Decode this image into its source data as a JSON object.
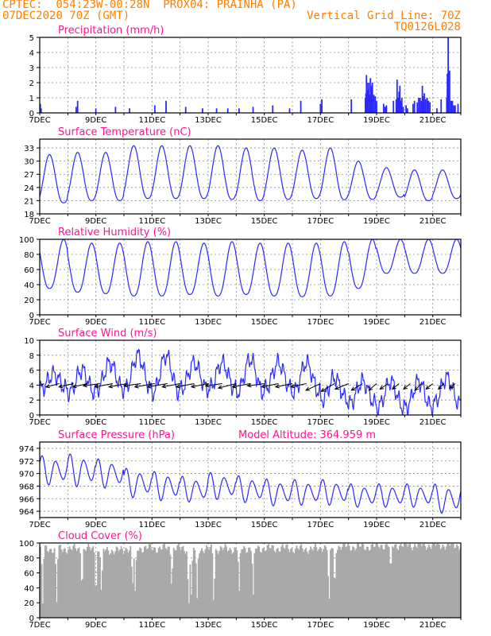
{
  "header": {
    "line1": "CPTEC:  054:23W-00:28N  PROX04: PRAINHA (PA)",
    "line2": "07DEC2020 70Z (GMT)",
    "right1": "Vertical Grid Line: 70Z",
    "right2": "TQ0126L028"
  },
  "colors": {
    "header": "#ff7f00",
    "title": "#ff1493",
    "series": "#2a2aff",
    "cloud": "#a9a9a9"
  },
  "x_tick_labels": [
    "7DEC",
    "9DEC",
    "11DEC",
    "13DEC",
    "15DEC",
    "17DEC",
    "19DEC",
    "21DEC"
  ],
  "x_tick_days": [
    0,
    2,
    4,
    6,
    8,
    10,
    12,
    14
  ],
  "x_range_days": [
    0,
    15
  ],
  "panels": [
    {
      "id": "precipitation",
      "title": "Precipitation (mm/h)",
      "title_extra": "",
      "y_ticks": [
        0,
        1,
        2,
        3,
        4,
        5
      ],
      "chart_data": {
        "type": "bar",
        "xlabel_units": "days since 07DEC2020",
        "ylim": [
          0,
          5
        ],
        "x": [
          0.02,
          0.05,
          1.3,
          1.35,
          2.0,
          2.7,
          3.2,
          4.1,
          4.5,
          5.2,
          5.8,
          6.3,
          6.7,
          7.1,
          7.6,
          8.3,
          8.9,
          9.3,
          10.0,
          10.05,
          11.1,
          11.6,
          11.62,
          11.64,
          11.66,
          11.7,
          11.72,
          11.75,
          11.78,
          11.8,
          11.82,
          11.85,
          11.9,
          11.95,
          12.0,
          12.25,
          12.3,
          12.35,
          12.6,
          12.7,
          12.73,
          12.76,
          12.8,
          12.83,
          12.87,
          12.9,
          12.95,
          13.05,
          13.1,
          13.3,
          13.35,
          13.45,
          13.5,
          13.55,
          13.6,
          13.63,
          13.65,
          13.67,
          13.7,
          13.75,
          13.8,
          13.85,
          13.9,
          14.15,
          14.3,
          14.5,
          14.52,
          14.55,
          14.58,
          14.6,
          14.65,
          14.7,
          14.75,
          14.8,
          14.9
        ],
        "values": [
          0.6,
          0.3,
          0.4,
          0.8,
          0.3,
          0.4,
          0.3,
          0.5,
          0.8,
          0.4,
          0.3,
          0.3,
          0.3,
          0.3,
          0.4,
          0.5,
          0.3,
          0.8,
          0.6,
          0.9,
          0.9,
          1.0,
          1.3,
          2.5,
          2.0,
          1.5,
          2.0,
          1.2,
          2.3,
          1.8,
          1.6,
          2.0,
          1.2,
          1.1,
          0.8,
          0.6,
          0.4,
          0.5,
          0.8,
          0.9,
          2.2,
          1.0,
          1.4,
          1.8,
          0.8,
          1.0,
          0.4,
          0.5,
          0.3,
          0.6,
          0.8,
          0.7,
          1.0,
          1.0,
          0.8,
          1.8,
          1.1,
          0.9,
          1.3,
          0.9,
          1.0,
          0.8,
          0.7,
          0.3,
          0.9,
          1.0,
          2.6,
          5.0,
          1.9,
          2.8,
          0.8,
          0.8,
          0.5,
          0.5,
          0.6
        ]
      }
    },
    {
      "id": "temperature",
      "title": "Surface Temperature (nC)",
      "title_extra": "",
      "y_ticks": [
        18,
        21,
        24,
        27,
        30,
        33
      ],
      "chart_data": {
        "type": "line",
        "ylim": [
          18,
          35
        ],
        "phase": 0.35,
        "min": [
          20.5,
          21.0,
          21.0,
          21.5,
          21.5,
          21.5,
          21.3,
          21.0,
          21.3,
          21.5,
          21.2,
          21.3,
          21.8,
          21.0,
          21.5
        ],
        "max": [
          31.5,
          32.0,
          32.0,
          33.5,
          33.5,
          33.5,
          33.5,
          33.0,
          33.0,
          32.5,
          33.0,
          30.0,
          28.5,
          28.0,
          28.0
        ]
      }
    },
    {
      "id": "humidity",
      "title": "Relative Humidity (%)",
      "title_extra": "",
      "y_ticks": [
        0,
        20,
        40,
        60,
        80,
        100
      ],
      "chart_data": {
        "type": "line",
        "ylim": [
          0,
          100
        ],
        "phase": 0.85,
        "min": [
          35,
          30,
          28,
          25,
          25,
          27,
          25,
          27,
          25,
          24,
          25,
          35,
          55,
          55,
          55
        ],
        "max": [
          100,
          95,
          95,
          97,
          97,
          95,
          97,
          95,
          95,
          95,
          97,
          100,
          100,
          100,
          100
        ]
      }
    },
    {
      "id": "wind",
      "title": "Surface Wind (m/s)",
      "title_extra": "",
      "y_ticks": [
        0,
        2,
        4,
        6,
        8,
        10
      ],
      "chart_data": {
        "type": "line",
        "ylim": [
          0,
          10
        ],
        "phase": 0.5,
        "min": [
          3.5,
          3.0,
          3.5,
          3.5,
          3.0,
          3.5,
          3.5,
          3.0,
          3.5,
          3.0,
          2.0,
          1.5,
          1.0,
          1.0,
          1.5
        ],
        "max": [
          5.5,
          6.0,
          7.0,
          8.0,
          8.0,
          7.0,
          7.0,
          7.5,
          7.0,
          7.0,
          5.0,
          4.5,
          4.5,
          4.5,
          5.0
        ],
        "arrows_x": [
          0.15,
          0.7,
          1.2,
          1.7,
          2.15,
          2.6,
          3.1,
          3.6,
          4.1,
          4.55,
          5.0,
          5.5,
          6.0,
          6.5,
          7.0,
          7.5,
          8.0,
          8.5,
          9.0,
          9.5,
          10.0,
          10.5,
          11.0,
          11.5,
          12.0,
          12.4,
          12.8,
          13.2,
          13.6,
          14.0,
          14.4,
          14.8
        ],
        "arrows_u": [
          -1.0,
          -1.2,
          -1.3,
          -1.3,
          -1.5,
          -1.6,
          -1.6,
          -1.5,
          -1.8,
          -1.8,
          -1.6,
          -1.6,
          -1.5,
          -1.5,
          -1.6,
          -1.6,
          -1.5,
          -1.5,
          -1.5,
          -1.4,
          -1.3,
          -1.2,
          -1.2,
          -1.0,
          -0.7,
          -0.7,
          -0.6,
          -0.6,
          -0.6,
          -0.6,
          -0.5,
          -0.5
        ],
        "arrows_v": [
          -0.5,
          -0.3,
          -0.3,
          -0.3,
          -0.2,
          -0.3,
          -0.3,
          -0.2,
          -0.3,
          -0.3,
          -0.3,
          -0.3,
          -0.3,
          -0.2,
          -0.4,
          -0.3,
          -0.2,
          -0.3,
          -0.3,
          -0.3,
          -0.6,
          -0.7,
          -0.5,
          -0.6,
          -0.6,
          -0.5,
          -0.5,
          -0.5,
          -0.6,
          -0.5,
          -0.5,
          -0.4
        ]
      }
    },
    {
      "id": "pressure",
      "title": "Surface Pressure (hPa)",
      "title_extra": "Model Altitude: 364.959  m",
      "y_ticks": [
        964,
        966,
        968,
        970,
        972,
        974
      ],
      "chart_data": {
        "type": "line",
        "ylim": [
          963,
          975
        ],
        "semi_phase": 0.45,
        "base": [
          970.5,
          970.5,
          970.0,
          968.5,
          968.0,
          967.5,
          968.0,
          967.5,
          967.0,
          967.0,
          967.0,
          966.5,
          966.5,
          966.5,
          966.0
        ],
        "amplitude": [
          2.5,
          2.8,
          2.5,
          2.5,
          2.5,
          2.2,
          2.3,
          2.3,
          2.3,
          2.2,
          2.2,
          2.0,
          2.0,
          2.0,
          2.5
        ]
      }
    },
    {
      "id": "cloud",
      "title": "Cloud Cover (%)",
      "title_extra": "",
      "y_ticks": [
        0,
        20,
        40,
        60,
        80,
        100
      ],
      "chart_data": {
        "type": "area",
        "ylim": [
          0,
          100
        ],
        "typical": [
          92,
          92,
          90,
          93,
          93,
          92,
          92,
          93,
          93,
          92,
          95,
          95,
          97,
          97,
          97
        ],
        "dips_x": [
          0.1,
          0.6,
          1.5,
          2.0,
          2.2,
          3.3,
          3.4,
          4.7,
          5.3,
          5.4,
          5.6,
          6.2,
          7.1,
          7.6,
          10.3,
          10.5,
          12.5
        ],
        "dips_value": [
          18,
          20,
          35,
          25,
          30,
          40,
          35,
          40,
          10,
          30,
          25,
          15,
          35,
          30,
          15,
          35,
          60
        ]
      }
    }
  ]
}
